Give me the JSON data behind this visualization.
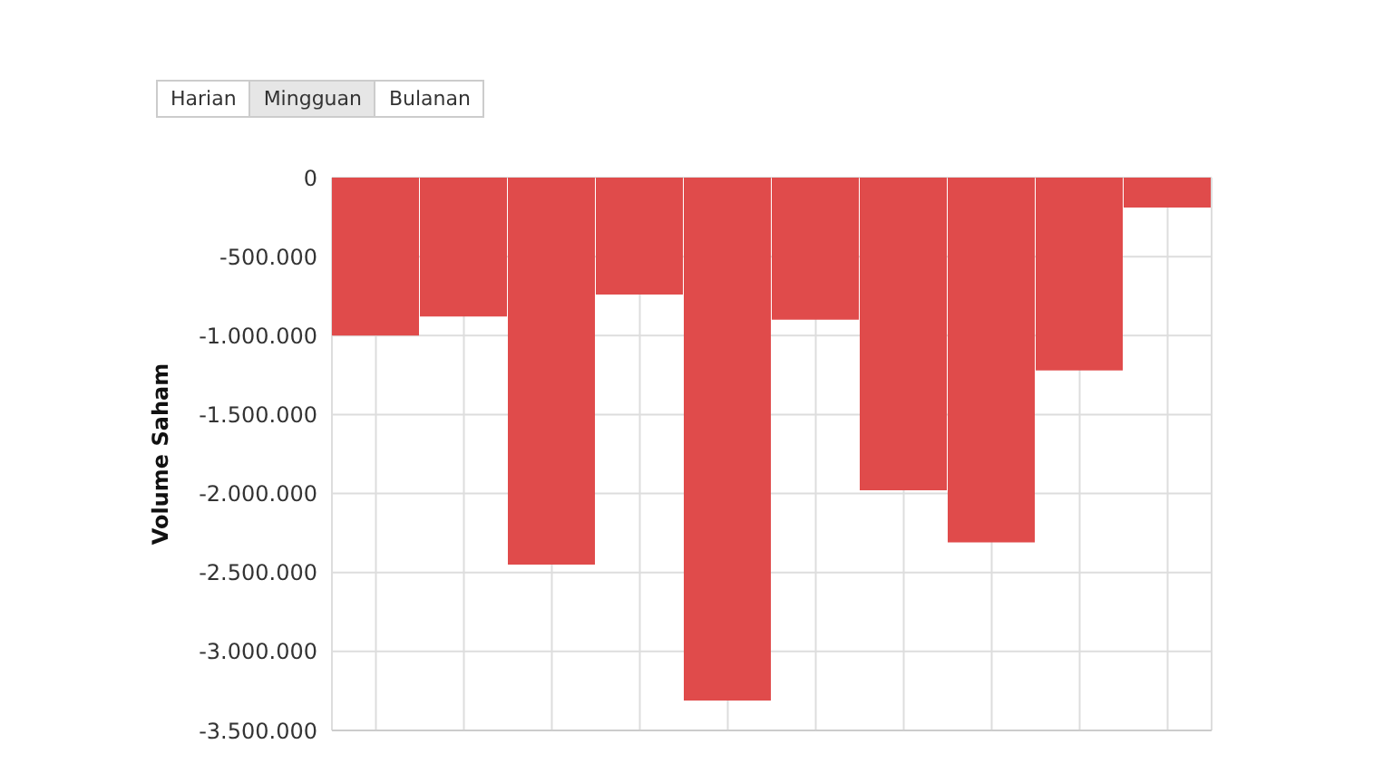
{
  "chart_data": {
    "type": "bar",
    "ylabel": "Volume Saham",
    "categories": [
      null,
      null,
      null,
      null,
      null,
      null,
      null,
      null,
      null,
      null
    ],
    "values": [
      -1000000,
      -880000,
      -2450000,
      -740000,
      -3310000,
      -900000,
      -1980000,
      -2310000,
      -1220000,
      -190000
    ],
    "color": "#e04b4b",
    "ylim": [
      -3500000,
      0
    ],
    "yticks": [
      {
        "value": 0,
        "label": "0"
      },
      {
        "value": -500000,
        "label": "-500.000"
      },
      {
        "value": -1000000,
        "label": "-1.000.000"
      },
      {
        "value": -1500000,
        "label": "-1.500.000"
      },
      {
        "value": -2000000,
        "label": "-2.000.000"
      },
      {
        "value": -2500000,
        "label": "-2.500.000"
      },
      {
        "value": -3000000,
        "label": "-3.000.000"
      },
      {
        "value": -3500000,
        "label": "-3.500.000"
      }
    ],
    "grid": true,
    "annotations": [
      "Harian",
      "Mingguan",
      "Bulanan"
    ]
  }
}
